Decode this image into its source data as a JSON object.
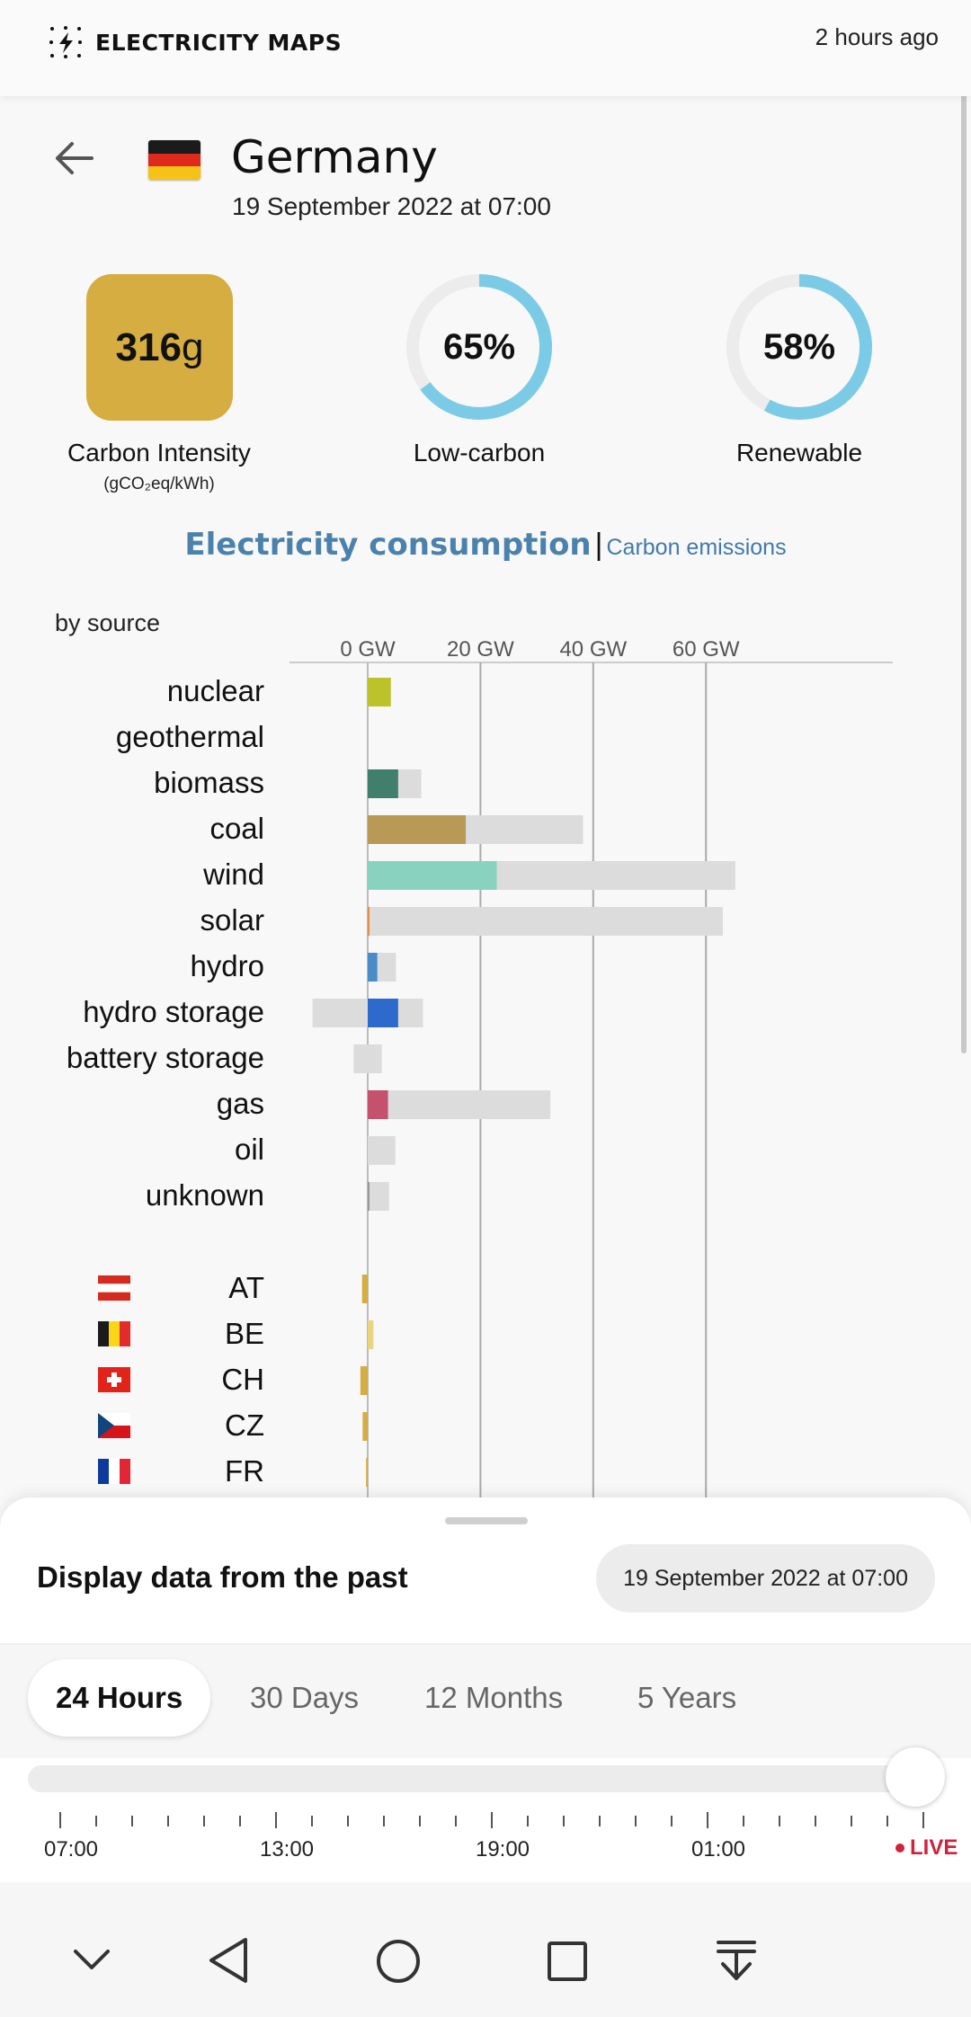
{
  "header": {
    "app_title": "ELECTRICITY MAPS",
    "updated": "2 hours ago"
  },
  "zone": {
    "name": "Germany",
    "datetime": "19 September 2022 at 07:00"
  },
  "stats": {
    "carbon_intensity": {
      "value": "316",
      "unit": "g",
      "label": "Carbon Intensity",
      "sublabel": "(gCO₂eq/kWh)",
      "color": "#d5ad40"
    },
    "low_carbon": {
      "value": "65%",
      "percent": 65,
      "label": "Low-carbon"
    },
    "renewable": {
      "value": "58%",
      "percent": 58,
      "label": "Renewable"
    }
  },
  "tabs": {
    "active": "Electricity consumption",
    "separator": "|",
    "inactive": "Carbon emissions"
  },
  "chart_data": {
    "type": "bar",
    "title": "by source",
    "axis_ticks": [
      "0 GW",
      "20 GW",
      "40 GW",
      "60 GW"
    ],
    "xlim": [
      -10,
      65
    ],
    "unit": "GW",
    "categories": [
      "nuclear",
      "geothermal",
      "biomass",
      "coal",
      "wind",
      "solar",
      "hydro",
      "hydro storage",
      "battery storage",
      "gas",
      "oil",
      "unknown"
    ],
    "series": [
      {
        "name": "production",
        "values": [
          4.1,
          0,
          5.4,
          17.4,
          22.9,
          0.2,
          1.7,
          5.4,
          0,
          3.6,
          0,
          0.2
        ]
      },
      {
        "name": "capacity",
        "values": [
          4.1,
          0,
          9.5,
          38.2,
          65.2,
          63,
          5,
          9.8,
          2.5,
          32.4,
          4.9,
          3.8
        ]
      },
      {
        "name": "capacity_negative",
        "values": [
          0,
          0,
          0,
          0,
          0,
          0,
          0,
          -9.8,
          -2.5,
          0,
          0,
          0
        ]
      }
    ],
    "colors": [
      "#bcc22a",
      "#999999",
      "#3f7f6b",
      "#b89a56",
      "#8ad2c0",
      "#f08a3e",
      "#4a8bca",
      "#2d6acc",
      "#999999",
      "#c4516d",
      "#999999",
      "#999999"
    ],
    "exchanges": [
      {
        "zone": "AT",
        "value": -1.0,
        "color": "#d5ad40"
      },
      {
        "zone": "BE",
        "value": 1.0,
        "color": "#e9d37c"
      },
      {
        "zone": "CH",
        "value": -1.3,
        "color": "#d5ad40"
      },
      {
        "zone": "CZ",
        "value": -0.9,
        "color": "#d5ad40"
      },
      {
        "zone": "FR",
        "value": -0.3,
        "color": "#d5ad40"
      }
    ]
  },
  "bottom_sheet": {
    "title": "Display data from the past",
    "date": "19 September 2022 at 07:00",
    "periods": [
      "24 Hours",
      "30 Days",
      "12 Months",
      "5 Years"
    ],
    "active_period": "24 Hours",
    "slider_value": 1.0,
    "time_labels": [
      "07:00",
      "13:00",
      "19:00",
      "01:00"
    ],
    "live": "LIVE",
    "live_color": "#d1213d"
  },
  "nav": {
    "icons": [
      "chevron-down-icon",
      "back-icon",
      "home-icon",
      "recents-icon",
      "download-icon"
    ]
  }
}
